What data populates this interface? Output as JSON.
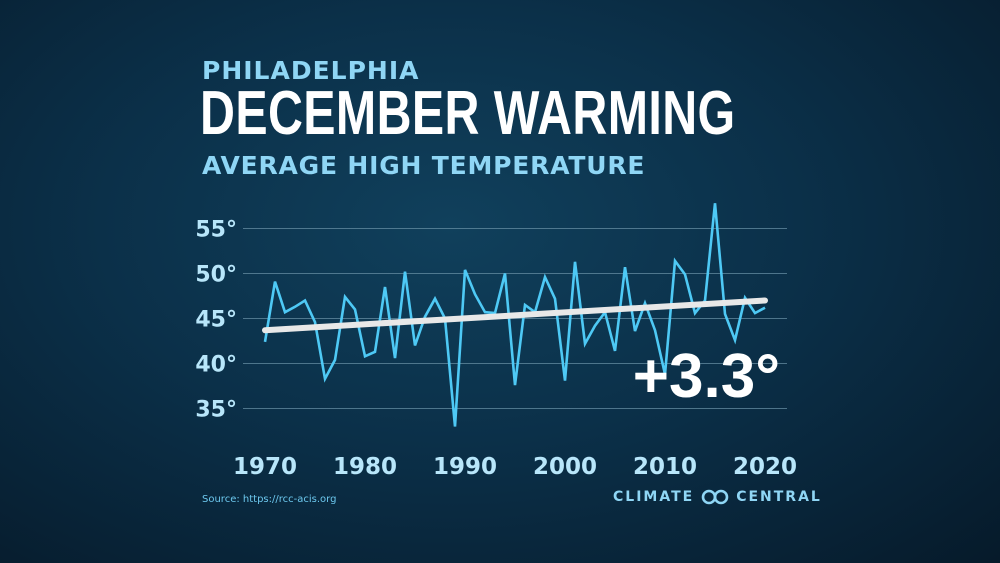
{
  "header": {
    "subtitle": "PHILADELPHIA",
    "title": "DECEMBER WARMING",
    "chart_subtitle": "AVERAGE HIGH TEMPERATURE"
  },
  "footer": {
    "source": "Source: https://rcc-acis.org",
    "brand_left": "CLIMATE",
    "brand_right": "CENTRAL"
  },
  "colors": {
    "series": "#4ec9f5",
    "trend": "#e8e8e8",
    "tick_text": "#b8e6fa",
    "grid": "#6b93a8",
    "annotation": "#ffffff"
  },
  "chart_data": {
    "type": "line",
    "title": "DECEMBER WARMING",
    "ylabel": "AVERAGE HIGH TEMPERATURE",
    "xlabel": "",
    "xlim": [
      1970,
      2020
    ],
    "ylim": [
      33,
      58
    ],
    "yticks": [
      35,
      40,
      45,
      50,
      55
    ],
    "ytick_labels": [
      "35°",
      "40°",
      "45°",
      "50°",
      "55°"
    ],
    "xticks": [
      1970,
      1980,
      1990,
      2000,
      2010,
      2020
    ],
    "xtick_labels": [
      "1970",
      "1980",
      "1990",
      "2000",
      "2010",
      "2020"
    ],
    "grid": true,
    "annotation": "+3.3°",
    "series": [
      {
        "name": "Average high temperature",
        "x": [
          1970,
          1971,
          1972,
          1973,
          1974,
          1975,
          1976,
          1977,
          1978,
          1979,
          1980,
          1981,
          1982,
          1983,
          1984,
          1985,
          1986,
          1987,
          1988,
          1989,
          1990,
          1991,
          1992,
          1993,
          1994,
          1995,
          1996,
          1997,
          1998,
          1999,
          2000,
          2001,
          2002,
          2003,
          2004,
          2005,
          2006,
          2007,
          2008,
          2009,
          2010,
          2011,
          2012,
          2013,
          2014,
          2015,
          2016,
          2017,
          2018,
          2019,
          2020
        ],
        "values": [
          42.4,
          49.1,
          45.7,
          46.3,
          47.0,
          44.6,
          38.3,
          40.4,
          47.4,
          46.0,
          40.8,
          41.3,
          48.5,
          40.6,
          50.2,
          42.0,
          45.2,
          47.2,
          45.0,
          33.0,
          50.4,
          47.7,
          45.7,
          45.6,
          50.0,
          37.6,
          46.5,
          45.7,
          49.6,
          47.2,
          38.1,
          51.3,
          42.2,
          44.2,
          45.7,
          41.4,
          50.7,
          43.6,
          46.7,
          43.7,
          38.8,
          51.4,
          49.9,
          45.6,
          47.0,
          57.8,
          45.5,
          42.6,
          47.3,
          45.6,
          46.2
        ]
      },
      {
        "name": "Trend",
        "x": [
          1970,
          2020
        ],
        "values": [
          43.7,
          47.0
        ]
      }
    ]
  }
}
